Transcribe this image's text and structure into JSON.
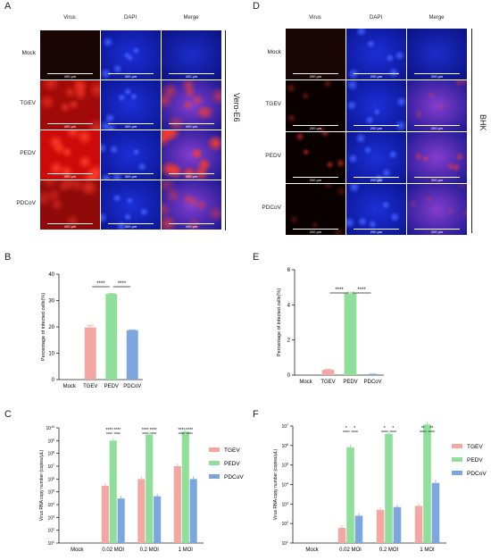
{
  "panels": {
    "A": {
      "letter": "A",
      "columns": [
        "Virus",
        "DAPI",
        "Merge"
      ],
      "rows": [
        "Mock",
        "TGEV",
        "PEDV",
        "PDCoV"
      ],
      "cell_line": "Vero-E6",
      "scale": "400 μm"
    },
    "D": {
      "letter": "D",
      "columns": [
        "Virus",
        "DAPI",
        "Merge"
      ],
      "rows": [
        "Mock",
        "TGEV",
        "PEDV",
        "PDCoV"
      ],
      "cell_line": "BHK",
      "scale": "200 μm"
    }
  },
  "colors": {
    "TGEV": "#f2a7a3",
    "PEDV": "#8fdf9a",
    "PDCoV": "#7ea6de",
    "Mock": "#cccccc",
    "dapi": "#1a2fd0",
    "virus_red": "#e01515"
  },
  "chart_data": [
    {
      "id": "B",
      "letter": "B",
      "type": "bar",
      "categories": [
        "Mock",
        "TGEV",
        "PEDV",
        "PDCoV"
      ],
      "values": [
        0,
        19.8,
        32.5,
        18.7
      ],
      "errors": [
        0,
        0.8,
        0.2,
        0.2
      ],
      "ylabel": "Percentage of infected cells(%)",
      "ylim": [
        0,
        40
      ],
      "yticks": [
        0,
        10,
        20,
        30,
        40
      ],
      "sig": [
        {
          "from": 1,
          "to": 2,
          "label": "****"
        },
        {
          "from": 2,
          "to": 3,
          "label": "****"
        }
      ]
    },
    {
      "id": "E",
      "letter": "E",
      "type": "bar",
      "categories": [
        "Mock",
        "TGEV",
        "PEDV",
        "PDCoV"
      ],
      "values": [
        0,
        0.3,
        4.65,
        0.05
      ],
      "errors": [
        0,
        0.03,
        0.08,
        0.01
      ],
      "ylabel": "Percentage of infected cells(%)",
      "ylim": [
        0,
        6
      ],
      "yticks": [
        0,
        2,
        4,
        6
      ],
      "sig": [
        {
          "from": 1,
          "to": 2,
          "label": "****"
        },
        {
          "from": 2,
          "to": 3,
          "label": "****"
        }
      ]
    },
    {
      "id": "C",
      "letter": "C",
      "type": "bar",
      "log_scale": true,
      "categories": [
        "Mock",
        "0.02 MOI",
        "0.2 MOI",
        "1 MOI"
      ],
      "series": [
        {
          "name": "TGEV",
          "values": [
            null,
            300000,
            1000000,
            10000000
          ]
        },
        {
          "name": "PEDV",
          "values": [
            null,
            1000000000,
            3000000000,
            5000000000
          ]
        },
        {
          "name": "PDCoV",
          "values": [
            null,
            30000,
            45000,
            1000000
          ]
        }
      ],
      "ylabel": "Virus RNA copy number (copies/μL)",
      "ylim_exp": [
        1,
        10
      ],
      "sig": [
        {
          "group": 1,
          "labels": [
            "****",
            "****"
          ]
        },
        {
          "group": 2,
          "labels": [
            "****",
            "****"
          ]
        },
        {
          "group": 3,
          "labels": [
            "****",
            "****"
          ]
        }
      ],
      "legend": "right"
    },
    {
      "id": "F",
      "letter": "F",
      "type": "bar",
      "log_scale": true,
      "categories": [
        "Mock",
        "0.02 MOI",
        "0.2 MOI",
        "1 MOI"
      ],
      "series": [
        {
          "name": "TGEV",
          "values": [
            null,
            60,
            500,
            800
          ]
        },
        {
          "name": "PEDV",
          "values": [
            null,
            800000,
            4000000,
            12000000
          ]
        },
        {
          "name": "PDCoV",
          "values": [
            null,
            250,
            700,
            12000
          ]
        }
      ],
      "ylabel": "Virus RNA copy number (copies/μL)",
      "ylim_exp": [
        1,
        7
      ],
      "sig": [
        {
          "group": 1,
          "labels": [
            "*",
            "*"
          ]
        },
        {
          "group": 2,
          "labels": [
            "*",
            "*"
          ]
        },
        {
          "group": 3,
          "labels": [
            "**",
            "**"
          ]
        }
      ],
      "legend": "right"
    }
  ]
}
